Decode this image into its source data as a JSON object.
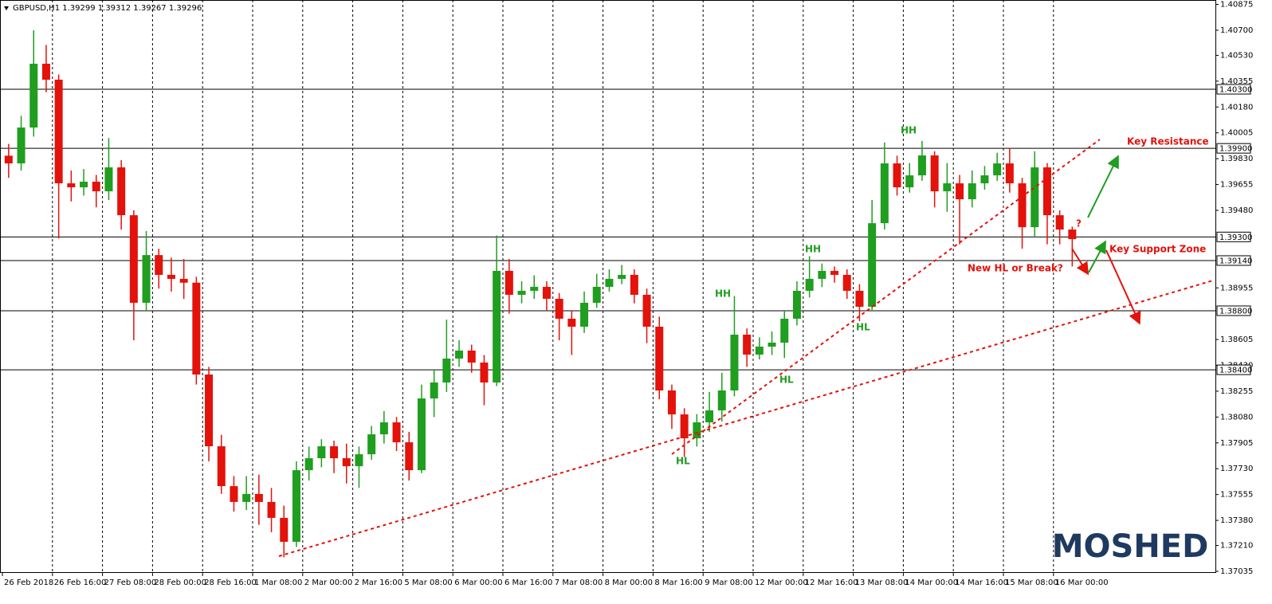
{
  "chart_data": {
    "type": "candlestick",
    "title": "GBPUSD,H1  1.39299 1.39312 1.39267 1.39296",
    "categories": [
      "26 Feb 2018",
      null,
      null,
      null,
      "26 Feb 16:00",
      null,
      null,
      null,
      "27 Feb 08:00",
      null,
      null,
      null,
      "28 Feb 00:00",
      null,
      null,
      null,
      "28 Feb 16:00",
      null,
      null,
      null,
      "1 Mar 08:00",
      null,
      null,
      null,
      "2 Mar 00:00",
      null,
      null,
      null,
      "2 Mar 16:00",
      null,
      null,
      null,
      "5 Mar 08:00",
      null,
      null,
      null,
      "6 Mar 00:00",
      null,
      null,
      null,
      "6 Mar 16:00",
      null,
      null,
      null,
      "7 Mar 08:00",
      null,
      null,
      null,
      "8 Mar 00:00",
      null,
      null,
      null,
      "8 Mar 16:00",
      null,
      null,
      null,
      "9 Mar 08:00",
      null,
      null,
      null,
      "12 Mar 00:00",
      null,
      null,
      null,
      "12 Mar 16:00",
      null,
      null,
      null,
      "13 Mar 08:00",
      null,
      null,
      null,
      "14 Mar 00:00",
      null,
      null,
      null,
      "14 Mar 16:00",
      null,
      null,
      null,
      "15 Mar 08:00",
      null,
      null,
      null,
      "16 Mar 00:00",
      null
    ],
    "open": [
      1.3985,
      1.39798,
      1.40041,
      1.40473,
      1.40365,
      1.39663,
      1.39636,
      1.39674,
      1.39609,
      1.39771,
      1.39447,
      1.38854,
      1.39177,
      1.39043,
      1.39016,
      1.3899,
      1.38368,
      1.37882,
      1.37612,
      1.37505,
      1.37559,
      1.37505,
      1.37397,
      1.37235,
      1.3772,
      1.37801,
      1.37882,
      1.37801,
      1.37747,
      1.37828,
      1.37963,
      1.38044,
      1.37909,
      1.3772,
      1.38206,
      1.38314,
      1.38476,
      1.3853,
      1.38449,
      1.38314,
      1.3907,
      1.38908,
      1.38935,
      1.38962,
      1.38881,
      1.38746,
      1.38692,
      1.38854,
      1.38962,
      1.39016,
      1.39043,
      1.38908,
      1.38692,
      1.3826,
      1.38098,
      1.37936,
      1.38044,
      1.38125,
      1.3826,
      1.38638,
      1.38503,
      1.38557,
      1.38584,
      1.38746,
      1.38935,
      1.39016,
      1.3907,
      1.39043,
      1.38935,
      1.38827,
      1.39393,
      1.39798,
      1.39636,
      1.39717,
      1.39852,
      1.39609,
      1.39663,
      1.39555,
      1.39663,
      1.39717,
      1.39798,
      1.39663,
      1.39366,
      1.39771,
      1.39447,
      1.3935
    ],
    "high": [
      1.3993,
      1.4012,
      1.407,
      1.406,
      1.404,
      1.3975,
      1.3976,
      1.3972,
      1.3997,
      1.3982,
      1.3948,
      1.3934,
      1.3922,
      1.3916,
      1.3915,
      1.3903,
      1.3842,
      1.3796,
      1.3768,
      1.3768,
      1.3769,
      1.376,
      1.3748,
      1.3778,
      1.3788,
      1.3793,
      1.3792,
      1.379,
      1.3788,
      1.3802,
      1.3812,
      1.3808,
      1.3798,
      1.383,
      1.384,
      1.3874,
      1.386,
      1.3857,
      1.385,
      1.3931,
      1.3915,
      1.39,
      1.3904,
      1.39,
      1.3892,
      1.388,
      1.3893,
      1.3905,
      1.3908,
      1.3911,
      1.3908,
      1.3895,
      1.3876,
      1.383,
      1.3814,
      1.381,
      1.3825,
      1.3838,
      1.389,
      1.3868,
      1.3862,
      1.3866,
      1.388,
      1.39,
      1.3917,
      1.3912,
      1.391,
      1.3908,
      1.3898,
      1.3955,
      1.3994,
      1.3985,
      1.398,
      1.3995,
      1.3988,
      1.398,
      1.3972,
      1.3975,
      1.3978,
      1.3987,
      1.399,
      1.397,
      1.3988,
      1.398,
      1.3948,
      1.3937
    ],
    "low": [
      1.397,
      1.3975,
      1.3998,
      1.4028,
      1.3929,
      1.3954,
      1.3958,
      1.395,
      1.3955,
      1.3935,
      1.386,
      1.388,
      1.3895,
      1.3893,
      1.3888,
      1.383,
      1.3778,
      1.3756,
      1.3744,
      1.3745,
      1.3735,
      1.373,
      1.3713,
      1.372,
      1.3765,
      1.3774,
      1.377,
      1.3763,
      1.376,
      1.3779,
      1.379,
      1.3785,
      1.3765,
      1.377,
      1.3808,
      1.3825,
      1.3842,
      1.3838,
      1.3816,
      1.3829,
      1.3878,
      1.3885,
      1.3888,
      1.388,
      1.386,
      1.385,
      1.3865,
      1.3882,
      1.3893,
      1.3898,
      1.3885,
      1.3858,
      1.382,
      1.38,
      1.3781,
      1.3788,
      1.3798,
      1.3805,
      1.3822,
      1.3842,
      1.3847,
      1.385,
      1.3848,
      1.387,
      1.3889,
      1.3896,
      1.3899,
      1.3888,
      1.3873,
      1.388,
      1.3935,
      1.3958,
      1.396,
      1.3968,
      1.395,
      1.3947,
      1.3925,
      1.395,
      1.3962,
      1.3968,
      1.396,
      1.3922,
      1.393,
      1.3925,
      1.3925,
      1.391
    ],
    "close": [
      1.39798,
      1.40041,
      1.40473,
      1.40365,
      1.39663,
      1.39636,
      1.39674,
      1.39609,
      1.39771,
      1.39447,
      1.38854,
      1.39177,
      1.39043,
      1.39016,
      1.3899,
      1.38368,
      1.37882,
      1.37612,
      1.37505,
      1.37559,
      1.37505,
      1.37397,
      1.37235,
      1.3772,
      1.37801,
      1.37882,
      1.37801,
      1.37747,
      1.37828,
      1.37963,
      1.38044,
      1.37909,
      1.3772,
      1.38206,
      1.38314,
      1.38476,
      1.3853,
      1.38449,
      1.38314,
      1.3907,
      1.38908,
      1.38935,
      1.38962,
      1.38881,
      1.38746,
      1.38692,
      1.38854,
      1.38962,
      1.39016,
      1.39043,
      1.38908,
      1.38692,
      1.3826,
      1.38098,
      1.37936,
      1.38044,
      1.38125,
      1.3826,
      1.38638,
      1.38503,
      1.38557,
      1.38584,
      1.38746,
      1.38935,
      1.39016,
      1.3907,
      1.39043,
      1.38935,
      1.38827,
      1.39393,
      1.39798,
      1.39636,
      1.39717,
      1.39852,
      1.39609,
      1.39663,
      1.39555,
      1.39663,
      1.39717,
      1.39798,
      1.39663,
      1.39366,
      1.39771,
      1.39447,
      1.3935,
      1.39285
    ],
    "up_color": "#1f9e1f",
    "down_color": "#e3120b",
    "ylim": [
      1.37035,
      1.40875
    ],
    "yticks": [
      1.40875,
      {
        "value": 1.407,
        "label": "1.40700"
      },
      {
        "value": 1.4053,
        "label": "1.40530"
      },
      1.40355,
      {
        "value": 1.4018,
        "label": "1.40180"
      },
      1.40005,
      {
        "value": 1.3983,
        "label": "1.39830"
      },
      1.39655,
      {
        "value": 1.3948,
        "label": "1.39480"
      },
      1.38955,
      1.38605,
      {
        "value": 1.3843,
        "label": "1.38430"
      },
      1.38255,
      {
        "value": 1.3808,
        "label": "1.38080"
      },
      1.37905,
      {
        "value": 1.3773,
        "label": "1.37730"
      },
      1.37555,
      {
        "value": 1.3738,
        "label": "1.37380"
      },
      {
        "value": 1.3721,
        "label": "1.37210"
      },
      1.37035
    ],
    "levels": [
      {
        "value": 1.403,
        "label": "1.40300"
      },
      {
        "value": 1.399,
        "label": "1.39900"
      },
      {
        "value": 1.393,
        "label": "1.39300"
      },
      {
        "value": 1.3914,
        "label": "1.39140"
      },
      {
        "value": 1.388,
        "label": "1.38800"
      },
      {
        "value": 1.384,
        "label": "1.38400"
      }
    ],
    "grid": true,
    "annotations": [
      "HH",
      "HH",
      "HH",
      "HL",
      "HL",
      "HL",
      "Key Resistance",
      "Key Support Zone",
      "New HL or Break?",
      "?"
    ],
    "logo": "MOSHED"
  }
}
